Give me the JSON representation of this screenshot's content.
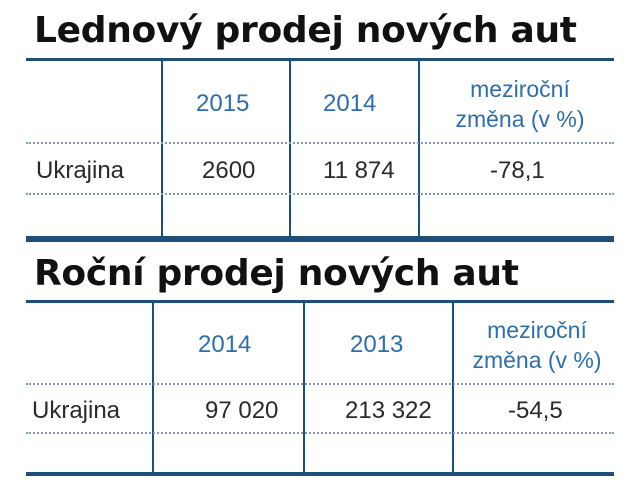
{
  "tables": [
    {
      "title": "Lednový prodej nových aut",
      "headers": [
        "2015",
        "2014",
        "meziroční",
        "změna (v %)"
      ],
      "row": {
        "label": "Ukrajina",
        "values": [
          "2600",
          "11 874",
          "-78,1"
        ]
      }
    },
    {
      "title": "Roční prodej nových aut",
      "headers": [
        "2014",
        "2013",
        "meziroční",
        "změna (v %)"
      ],
      "row": {
        "label": "Ukrajina",
        "values": [
          "97 020",
          "213 322",
          "-54,5"
        ]
      }
    }
  ],
  "colors": {
    "rule": "#1f4e79",
    "header_text": "#2f6ea8",
    "dotted": "#7f9bb6"
  }
}
